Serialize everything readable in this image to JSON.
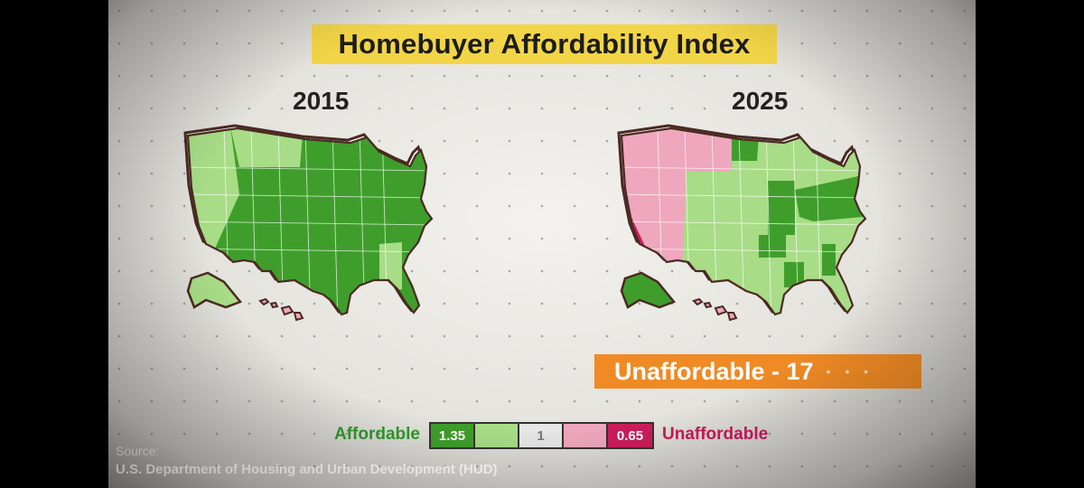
{
  "title": "Homebuyer Affordability Index",
  "maps": [
    {
      "year": "2015"
    },
    {
      "year": "2025"
    }
  ],
  "banner": {
    "text": "Unaffordable - 17"
  },
  "legend": {
    "left_label": "Affordable",
    "right_label": "Unaffordable",
    "scale": [
      {
        "label": "1.35",
        "color": "#3f9e2b"
      },
      {
        "label": "",
        "color": "#a8dc86"
      },
      {
        "label": "1",
        "color": "#e6e6e6"
      },
      {
        "label": "",
        "color": "#eea7bd"
      },
      {
        "label": "0.65",
        "color": "#cc1d5c"
      }
    ]
  },
  "source": {
    "label": "Source:",
    "text": "U.S. Department of Housing and Urban Development (HUD)"
  },
  "colors": {
    "dark_green": "#3f9e2b",
    "light_green": "#a8dc86",
    "pink": "#eea7bd",
    "dark_pink": "#cc1d5c",
    "banner_yellow": "#f2d547",
    "banner_orange": "#ef8a24"
  }
}
